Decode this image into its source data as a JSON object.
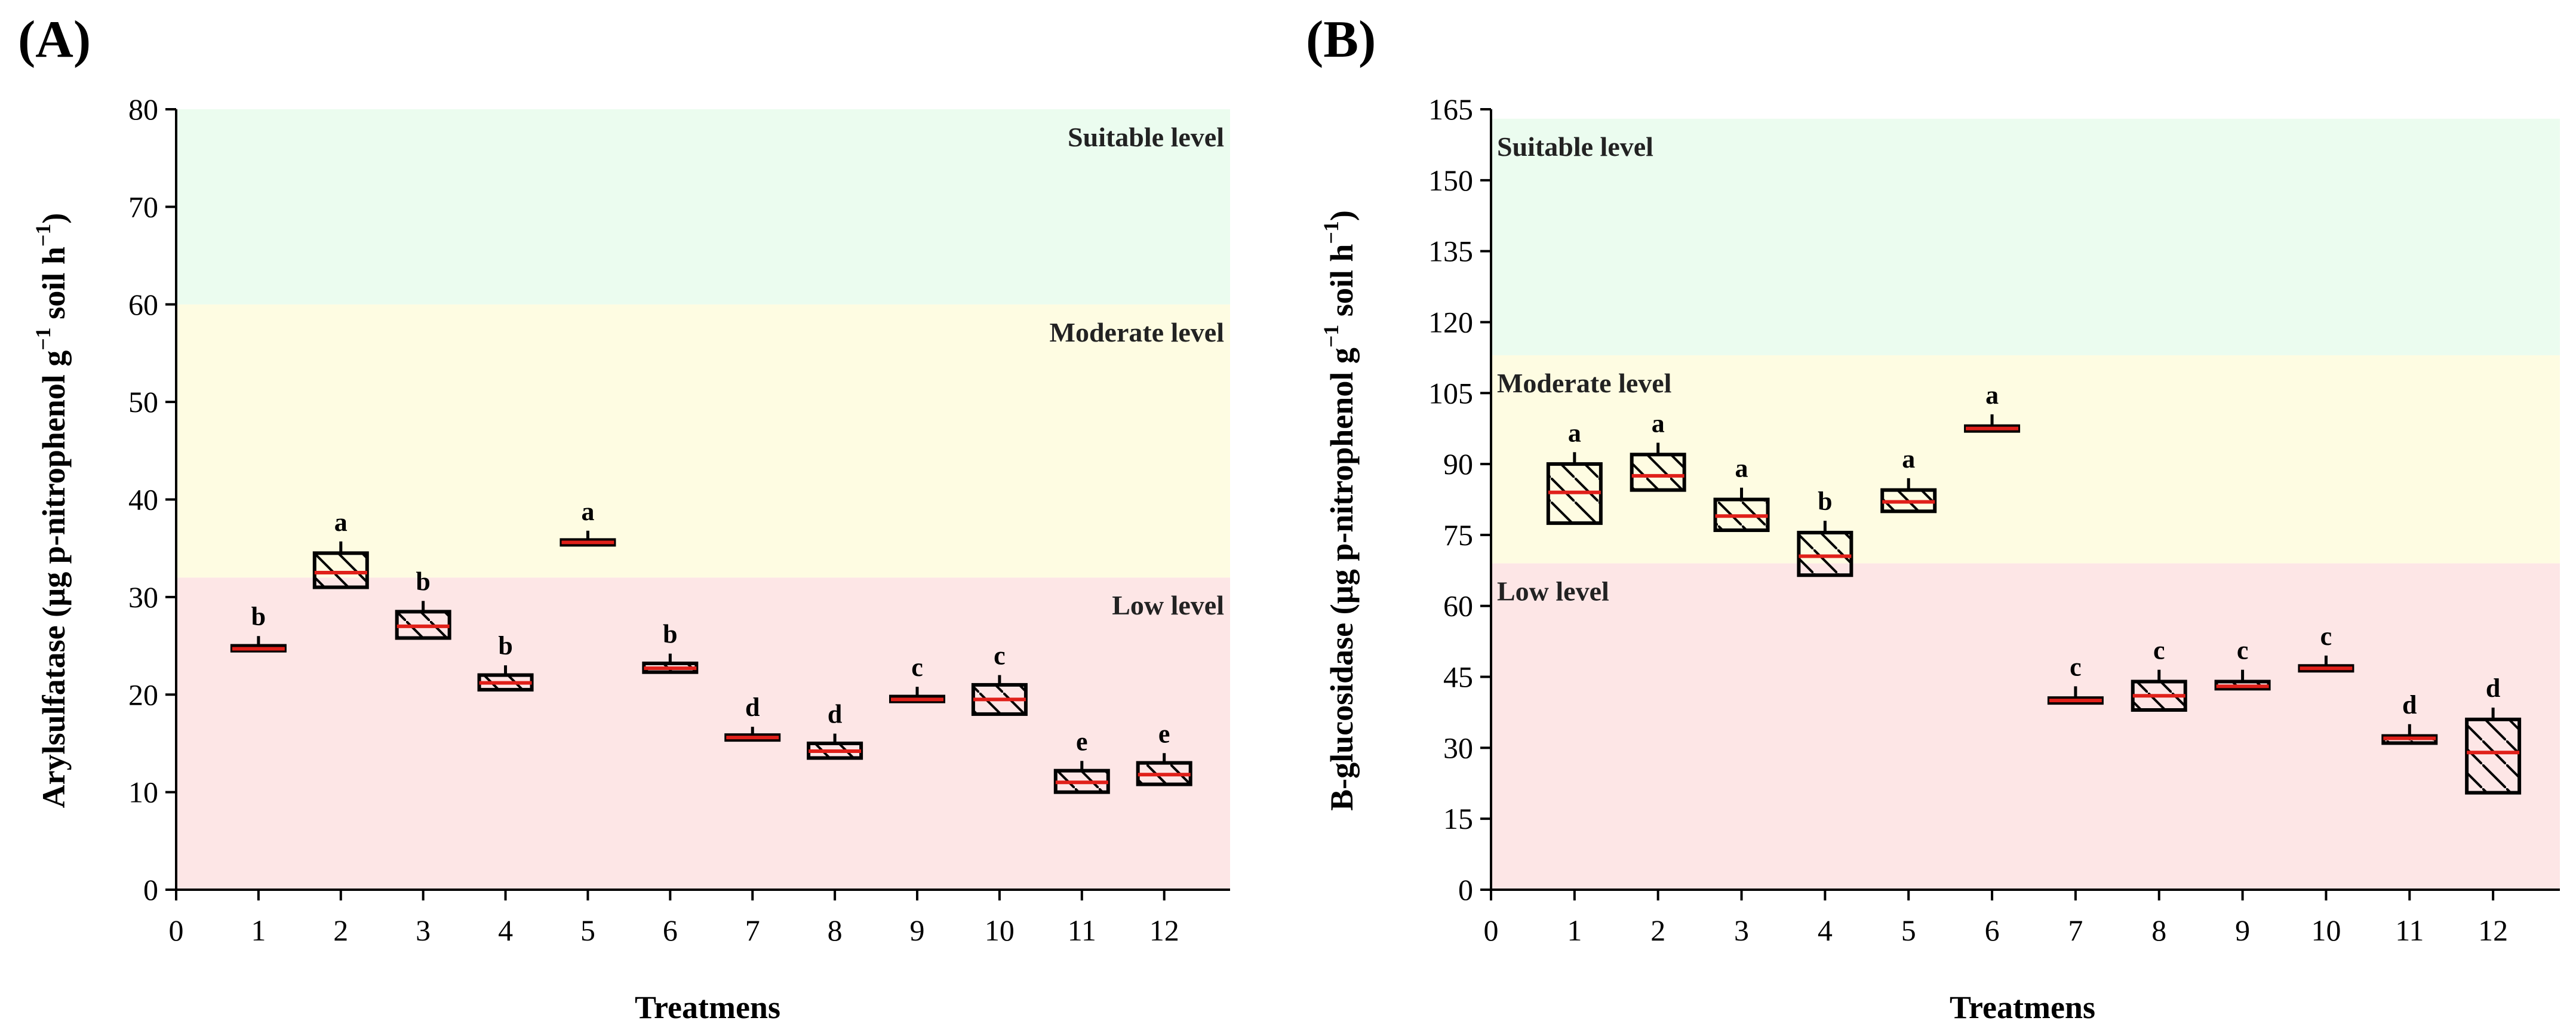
{
  "chart_data": [
    {
      "type": "box",
      "panel_label": "(A)",
      "xlabel": "Treatmens",
      "ylabel": "Arylsulfatase (µg p-nitrophenol g",
      "ylabel_unit_tail": " soil h",
      "superscript": "−1",
      "xlim": [
        0,
        12.8
      ],
      "ylim": [
        0,
        80
      ],
      "x_ticks": [
        0,
        1,
        2,
        3,
        4,
        5,
        6,
        7,
        8,
        9,
        10,
        11,
        12
      ],
      "y_ticks": [
        0,
        10,
        20,
        30,
        40,
        50,
        60,
        70,
        80
      ],
      "zones": [
        {
          "name": "Low level",
          "from": 0,
          "to": 32,
          "color": "#fde6e6"
        },
        {
          "name": "Moderate level",
          "from": 32,
          "to": 60,
          "color": "#fefce2"
        },
        {
          "name": "Suitable level",
          "from": 60,
          "to": 80,
          "color": "#ebfcef"
        }
      ],
      "zone_label_side": "right",
      "series": [
        {
          "x": 1,
          "q1": 24.5,
          "median": 24.7,
          "q3": 25.0,
          "whisker": 26.0,
          "letter": "b"
        },
        {
          "x": 2,
          "q1": 31.0,
          "median": 32.5,
          "q3": 34.5,
          "whisker": 35.7,
          "letter": "a"
        },
        {
          "x": 3,
          "q1": 25.8,
          "median": 27.0,
          "q3": 28.5,
          "whisker": 29.6,
          "letter": "b"
        },
        {
          "x": 4,
          "q1": 20.5,
          "median": 21.2,
          "q3": 22.0,
          "whisker": 23.0,
          "letter": "b"
        },
        {
          "x": 5,
          "q1": 35.4,
          "median": 35.6,
          "q3": 35.8,
          "whisker": 36.8,
          "letter": "a"
        },
        {
          "x": 6,
          "q1": 22.3,
          "median": 22.7,
          "q3": 23.2,
          "whisker": 24.2,
          "letter": "b"
        },
        {
          "x": 7,
          "q1": 15.5,
          "median": 15.6,
          "q3": 15.7,
          "whisker": 16.7,
          "letter": "d"
        },
        {
          "x": 8,
          "q1": 13.5,
          "median": 14.2,
          "q3": 15.0,
          "whisker": 16.0,
          "letter": "d"
        },
        {
          "x": 9,
          "q1": 19.3,
          "median": 19.5,
          "q3": 19.8,
          "whisker": 20.8,
          "letter": "c"
        },
        {
          "x": 10,
          "q1": 18.0,
          "median": 19.5,
          "q3": 21.0,
          "whisker": 22.0,
          "letter": "c"
        },
        {
          "x": 11,
          "q1": 10.0,
          "median": 11.0,
          "q3": 12.2,
          "whisker": 13.2,
          "letter": "e"
        },
        {
          "x": 12,
          "q1": 10.8,
          "median": 11.8,
          "q3": 13.0,
          "whisker": 14.0,
          "letter": "e"
        }
      ]
    },
    {
      "type": "box",
      "panel_label": "(B)",
      "xlabel": "Treatmens",
      "ylabel": "B-glucosidase (µg p-nitrophenol g",
      "ylabel_unit_tail": " soil h",
      "superscript": "−1",
      "xlim": [
        0,
        12.8
      ],
      "ylim": [
        0,
        165
      ],
      "x_ticks": [
        0,
        1,
        2,
        3,
        4,
        5,
        6,
        7,
        8,
        9,
        10,
        11,
        12
      ],
      "y_ticks": [
        0,
        15,
        30,
        45,
        60,
        75,
        90,
        105,
        120,
        135,
        150,
        165
      ],
      "zones": [
        {
          "name": "Low level",
          "from": 0,
          "to": 69,
          "color": "#fde6e6"
        },
        {
          "name": "Moderate level",
          "from": 69,
          "to": 113,
          "color": "#fefce2"
        },
        {
          "name": "Suitable level",
          "from": 113,
          "to": 163,
          "color": "#ebfcef"
        }
      ],
      "zone_label_side": "left",
      "series": [
        {
          "x": 1,
          "q1": 77.5,
          "median": 84.0,
          "q3": 90.0,
          "whisker": 92.5,
          "letter": "a"
        },
        {
          "x": 2,
          "q1": 84.5,
          "median": 87.5,
          "q3": 92.0,
          "whisker": 94.5,
          "letter": "a"
        },
        {
          "x": 3,
          "q1": 76.0,
          "median": 79.0,
          "q3": 82.5,
          "whisker": 85.0,
          "letter": "a"
        },
        {
          "x": 4,
          "q1": 66.5,
          "median": 70.5,
          "q3": 75.5,
          "whisker": 78.0,
          "letter": "b"
        },
        {
          "x": 5,
          "q1": 80.0,
          "median": 82.0,
          "q3": 84.5,
          "whisker": 87.0,
          "letter": "a"
        },
        {
          "x": 6,
          "q1": 97.0,
          "median": 97.5,
          "q3": 98.0,
          "whisker": 100.5,
          "letter": "a"
        },
        {
          "x": 7,
          "q1": 39.5,
          "median": 40.0,
          "q3": 40.5,
          "whisker": 43.0,
          "letter": "c"
        },
        {
          "x": 8,
          "q1": 38.0,
          "median": 41.0,
          "q3": 44.0,
          "whisker": 46.5,
          "letter": "c"
        },
        {
          "x": 9,
          "q1": 42.5,
          "median": 43.0,
          "q3": 44.0,
          "whisker": 46.5,
          "letter": "c"
        },
        {
          "x": 10,
          "q1": 46.5,
          "median": 46.8,
          "q3": 47.0,
          "whisker": 49.5,
          "letter": "c"
        },
        {
          "x": 11,
          "q1": 31.0,
          "median": 32.0,
          "q3": 32.5,
          "whisker": 35.0,
          "letter": "d"
        },
        {
          "x": 12,
          "q1": 20.5,
          "median": 29.0,
          "q3": 36.0,
          "whisker": 38.5,
          "letter": "d"
        }
      ]
    }
  ]
}
